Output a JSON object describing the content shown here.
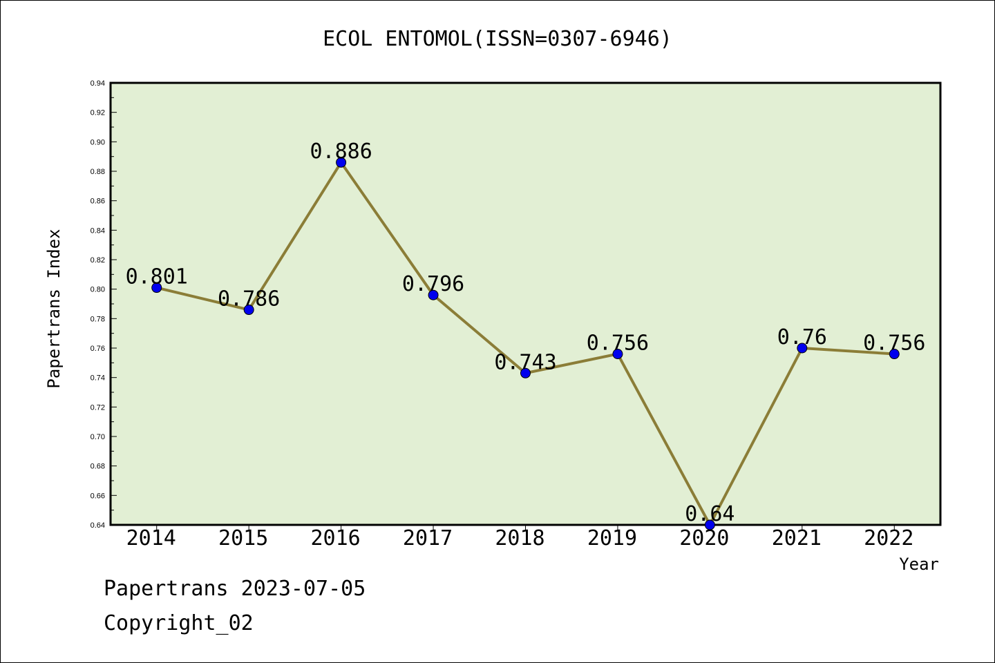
{
  "chart_data": {
    "type": "line",
    "title": "ECOL ENTOMOL(ISSN=0307-6946)",
    "xlabel": "Year",
    "ylabel": "Papertrans Index",
    "categories": [
      "2014",
      "2015",
      "2016",
      "2017",
      "2018",
      "2019",
      "2020",
      "2021",
      "2022"
    ],
    "series": [
      {
        "values": [
          0.801,
          0.786,
          0.886,
          0.796,
          0.743,
          0.756,
          0.64,
          0.76,
          0.756
        ],
        "labels": [
          "0.801",
          "0.786",
          "0.886",
          "0.796",
          "0.743",
          "0.756",
          "0.64",
          "0.76",
          "0.756"
        ]
      }
    ],
    "ylim": [
      0.64,
      0.94
    ],
    "ytick_labels": [
      "0.64",
      "0.66",
      "0.68",
      "0.70",
      "0.72",
      "0.74",
      "0.76",
      "0.78",
      "0.80",
      "0.82",
      "0.84",
      "0.86",
      "0.88",
      "0.90",
      "0.92",
      "0.94"
    ],
    "grid": false,
    "colors": {
      "plot_background": "#e2efd4",
      "line": "#8b7d37",
      "marker": "#0000ee",
      "axis": "#000000"
    }
  },
  "footer": {
    "source": "Papertrans 2023-07-05",
    "copyright": "Copyright_02"
  }
}
